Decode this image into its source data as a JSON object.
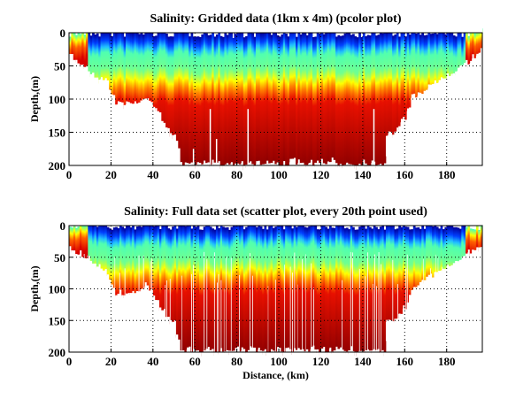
{
  "chart_data": [
    {
      "type": "heatmap",
      "title": "Salinity: Gridded data (1km x 4m) (pcolor plot)",
      "xlabel": "",
      "ylabel": "Depth,(m)",
      "xlim": [
        0,
        197
      ],
      "ylim": [
        200,
        0
      ],
      "xticks": [
        0,
        20,
        40,
        60,
        80,
        100,
        120,
        140,
        160,
        180
      ],
      "yticks": [
        0,
        50,
        100,
        150,
        200
      ],
      "grid": true,
      "colormap": "jet",
      "bottom_profile": {
        "x": [
          0,
          3,
          8,
          12,
          18,
          22,
          30,
          36,
          40,
          45,
          50,
          53,
          60,
          70,
          80,
          90,
          100,
          110,
          120,
          130,
          140,
          150,
          151,
          155,
          160,
          163,
          170,
          180,
          190,
          197
        ],
        "depth": [
          35,
          42,
          55,
          65,
          75,
          108,
          108,
          98,
          110,
          140,
          155,
          198,
          198,
          198,
          198,
          198,
          198,
          198,
          198,
          198,
          198,
          198,
          155,
          150,
          130,
          100,
          85,
          65,
          45,
          30
        ]
      },
      "fresh_layer_bottom_m": 20,
      "halocline_m": 75,
      "data_gaps_km": [
        78,
        59,
        67,
        70,
        85,
        145
      ]
    },
    {
      "type": "scatter",
      "title": "Salinity: Full data set (scatter plot, every 20th point used)",
      "xlabel": "Distance, (km)",
      "ylabel": "Depth,(m)",
      "xlim": [
        0,
        197
      ],
      "ylim": [
        200,
        0
      ],
      "xticks": [
        0,
        20,
        40,
        60,
        80,
        100,
        120,
        140,
        160,
        180
      ],
      "yticks": [
        0,
        50,
        100,
        150,
        200
      ],
      "grid": true,
      "colormap": "jet"
    }
  ]
}
